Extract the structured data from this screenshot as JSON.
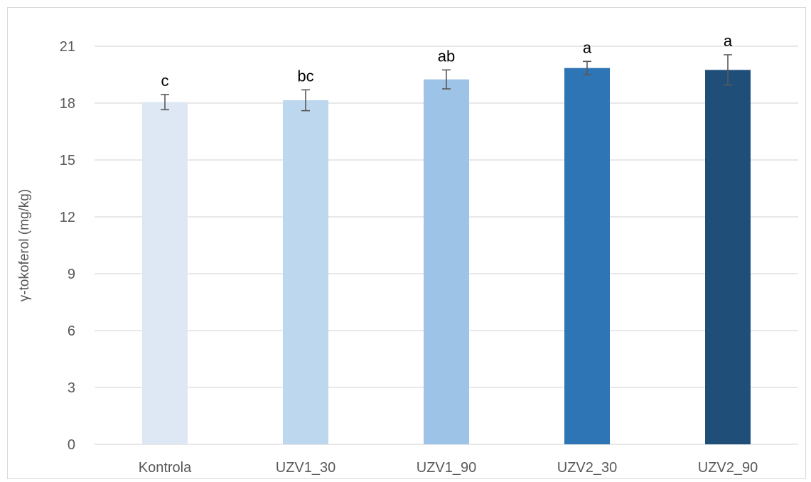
{
  "chart_data": {
    "type": "bar",
    "title": "",
    "xlabel": "",
    "ylabel": "γ-tokoferol (mg/kg)",
    "ylim": [
      0,
      21
    ],
    "yticks": [
      0,
      3,
      6,
      9,
      12,
      15,
      18,
      21
    ],
    "grid": true,
    "legend": "none",
    "categories": [
      "Kontrola",
      "UZV1_30",
      "UZV1_90",
      "UZV2_30",
      "UZV2_90"
    ],
    "values": [
      18.05,
      18.15,
      19.25,
      19.85,
      19.75
    ],
    "errors": [
      0.4,
      0.55,
      0.5,
      0.35,
      0.8
    ],
    "letters": [
      "c",
      "bc",
      "ab",
      "a",
      "a"
    ],
    "colors": [
      "#dde8f4",
      "#bdd7ee",
      "#9dc3e6",
      "#2e75b6",
      "#1f4e79"
    ]
  }
}
